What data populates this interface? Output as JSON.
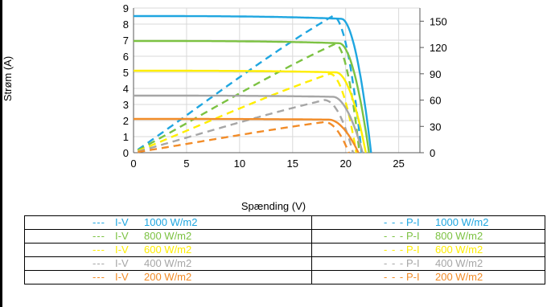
{
  "chart_data": {
    "type": "line",
    "xlabel": "Spænding (V)",
    "ylabel": "Strøm (A)",
    "xlim": [
      0,
      27
    ],
    "ylim": [
      0,
      9
    ],
    "y2lim": [
      0,
      165
    ],
    "xticks": [
      "0",
      "5",
      "10",
      "15",
      "20",
      "25"
    ],
    "yticks": [
      "0",
      "1",
      "2",
      "3",
      "4",
      "5",
      "6",
      "7",
      "8",
      "9"
    ],
    "y2ticks": [
      "0",
      "30",
      "60",
      "90",
      "120",
      "150"
    ],
    "grid": true,
    "series": [
      {
        "irradiance": "1000 W/m2",
        "color": "#1fa6e0",
        "Isc": 8.5,
        "Voc": 22.4,
        "mpp_v": 18.8,
        "mpp_p": 156
      },
      {
        "irradiance": "800 W/m2",
        "color": "#7cc242",
        "Isc": 6.95,
        "Voc": 22.2,
        "mpp_v": 19.0,
        "mpp_p": 124
      },
      {
        "irradiance": "600 W/m2",
        "color": "#ffee00",
        "Isc": 5.1,
        "Voc": 21.9,
        "mpp_v": 18.5,
        "mpp_p": 90
      },
      {
        "irradiance": "400 W/m2",
        "color": "#a6a6a6",
        "Isc": 3.55,
        "Voc": 21.6,
        "mpp_v": 18.0,
        "mpp_p": 60
      },
      {
        "irradiance": "200 W/m2",
        "color": "#f28c28",
        "Isc": 2.1,
        "Voc": 21.2,
        "mpp_v": 18.0,
        "mpp_p": 35
      }
    ]
  },
  "legend": {
    "rows": [
      {
        "iv_dash": "---",
        "iv_kind": "I-V",
        "iv_value": "1000 W/m2",
        "pi_dash": "- - -",
        "pi_kind": "P-I",
        "pi_value": "1000 W/m2",
        "color": "#1fa6e0"
      },
      {
        "iv_dash": "---",
        "iv_kind": "I-V",
        "iv_value": "800 W/m2",
        "pi_dash": "- - -",
        "pi_kind": "P-I",
        "pi_value": "800 W/m2",
        "color": "#7cc242"
      },
      {
        "iv_dash": "---",
        "iv_kind": "I-V",
        "iv_value": "600 W/m2",
        "pi_dash": "- - -",
        "pi_kind": "P-I",
        "pi_value": "600 W/m2",
        "color": "#ffee00"
      },
      {
        "iv_dash": "---",
        "iv_kind": "I-V",
        "iv_value": "400 W/m2",
        "pi_dash": "- - -",
        "pi_kind": "P-I",
        "pi_value": "400 W/m2",
        "color": "#a6a6a6"
      },
      {
        "iv_dash": "---",
        "iv_kind": "I-V",
        "iv_value": "200 W/m2",
        "pi_dash": "- - -",
        "pi_kind": "P-I",
        "pi_value": "200 W/m2",
        "color": "#f28c28"
      }
    ]
  }
}
